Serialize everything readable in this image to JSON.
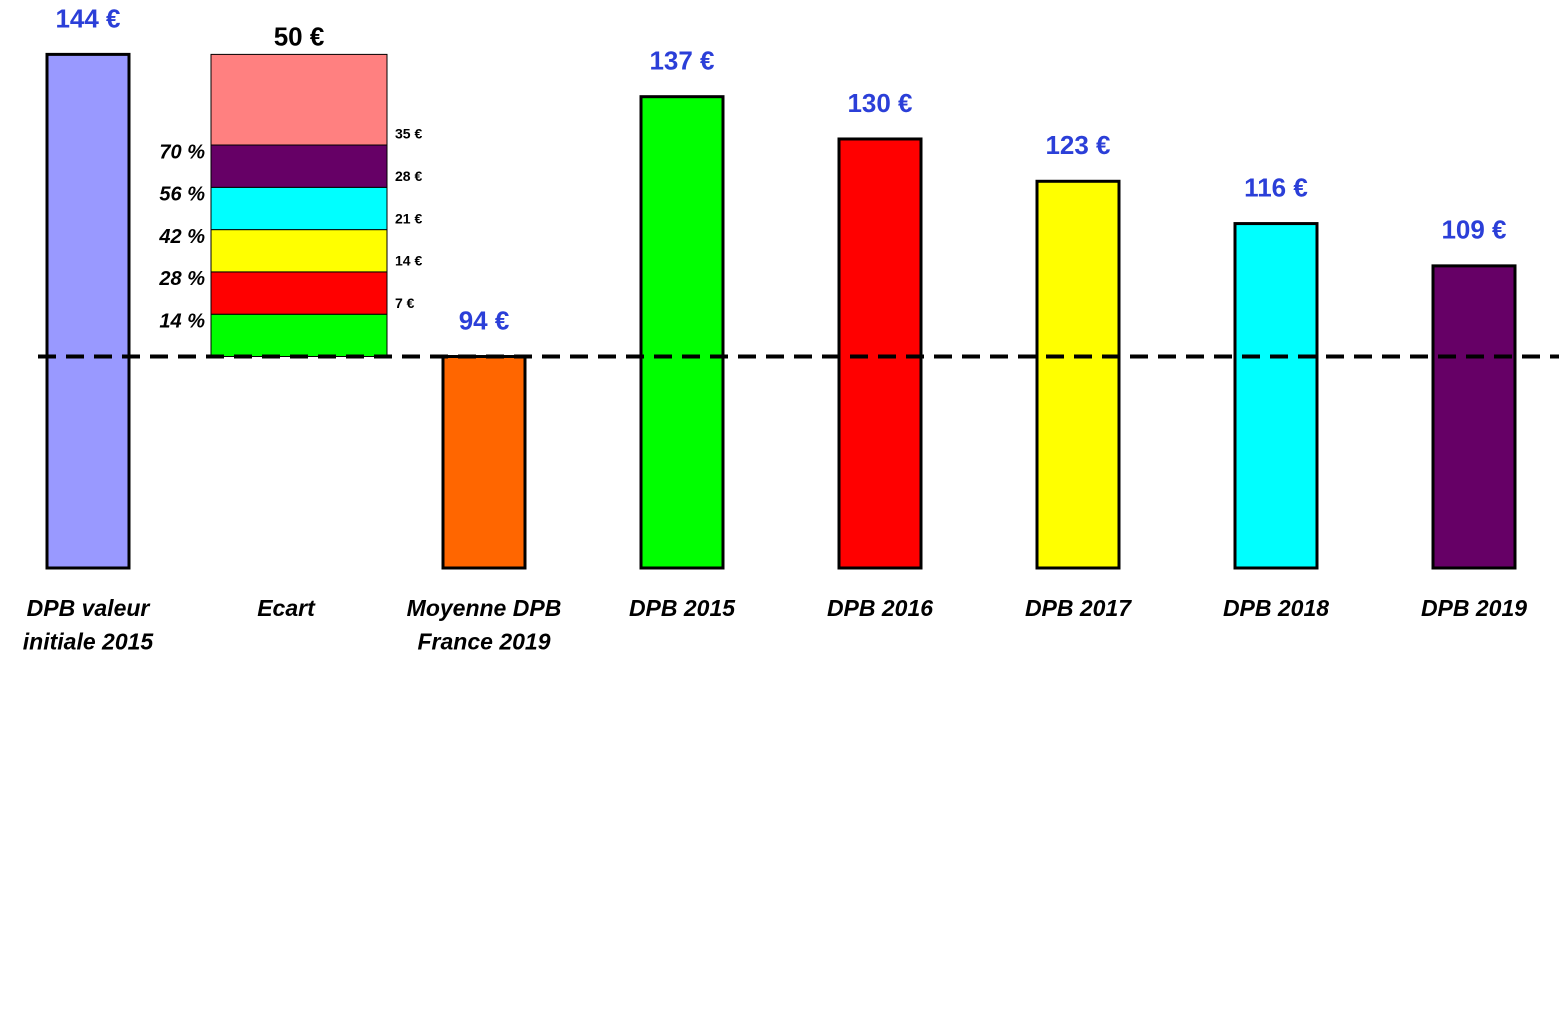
{
  "chart_data": {
    "type": "bar",
    "categories": [
      "DPB valeur\ninitiale 2015",
      "Ecart",
      "Moyenne DPB\nFrance 2019",
      "DPB 2015",
      "DPB 2016",
      "DPB 2017",
      "DPB 2018",
      "DPB 2019"
    ],
    "values": [
      144,
      null,
      94,
      137,
      130,
      123,
      116,
      109
    ],
    "value_labels": [
      "144 €",
      null,
      "94 €",
      "137 €",
      "130 €",
      "123 €",
      "116 €",
      "109 €"
    ],
    "colors": [
      "#9999ff",
      null,
      "#ff6600",
      "#00ff00",
      "#ff0000",
      "#ffff00",
      "#00ffff",
      "#660066"
    ],
    "ylim": [
      59,
      153
    ],
    "reference_index": 2,
    "stack": {
      "category_index": 1,
      "values": [
        7,
        7,
        7,
        7,
        7,
        15
      ],
      "colors": [
        "#00ff00",
        "#ff0000",
        "#ffff00",
        "#00ffff",
        "#660066",
        "#ff8080"
      ],
      "level_labels": [
        "7 €",
        "14 €",
        "21 €",
        "28 €",
        "35 €"
      ],
      "share_labels": [
        "14 %",
        "28 %",
        "42 %",
        "56 %",
        "70 %"
      ],
      "total": 50,
      "total_label": "50 €"
    }
  }
}
